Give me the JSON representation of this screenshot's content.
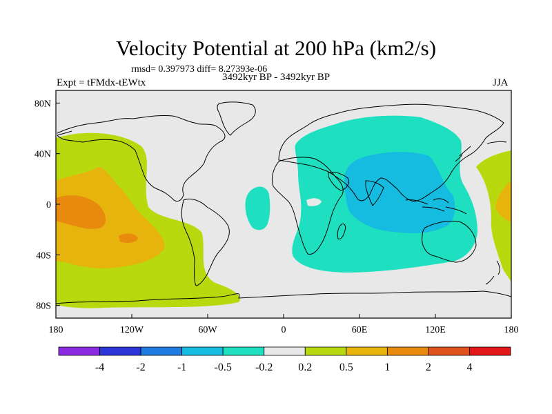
{
  "title": "Velocity Potential at 200 hPa (km2/s)",
  "stats": "rmsd= 0.397973  diff= 8.27393e-06",
  "period": "3492kyr BP - 3492kyr BP",
  "experiment": "Expt = tFMdx-tEWtx",
  "season": "JJA",
  "map": {
    "projection": "cylindrical-equidistant",
    "lon_range": [
      -180,
      180
    ],
    "lat_range": [
      -90,
      90
    ],
    "lon_ticks": [
      {
        "value": -180,
        "label": "180"
      },
      {
        "value": -120,
        "label": "120W"
      },
      {
        "value": -60,
        "label": "60W"
      },
      {
        "value": 0,
        "label": "0"
      },
      {
        "value": 60,
        "label": "60E"
      },
      {
        "value": 120,
        "label": "120E"
      },
      {
        "value": 180,
        "label": "180"
      }
    ],
    "lat_ticks": [
      {
        "value": 80,
        "label": "80N"
      },
      {
        "value": 40,
        "label": "40N"
      },
      {
        "value": 0,
        "label": "0"
      },
      {
        "value": -40,
        "label": "40S"
      },
      {
        "value": -80,
        "label": "80S"
      }
    ]
  },
  "colorbar": {
    "colors": [
      "#8a2be2",
      "#2b35d8",
      "#1f7be0",
      "#16bce0",
      "#1ee0c0",
      "#e8e8e8",
      "#b9d90f",
      "#e6b40c",
      "#e88a0e",
      "#e2521c",
      "#e31717"
    ],
    "labels": [
      "-4",
      "-2",
      "-1",
      "-0.5",
      "-0.2",
      "0.2",
      "0.5",
      "1",
      "2",
      "4"
    ]
  },
  "colors": {
    "neutral": "#e8e8e8",
    "teal": "#1ee0c0",
    "blue": "#16bce0",
    "green": "#b9d90f",
    "gold": "#e6b40c",
    "orange": "#e88a0e"
  }
}
